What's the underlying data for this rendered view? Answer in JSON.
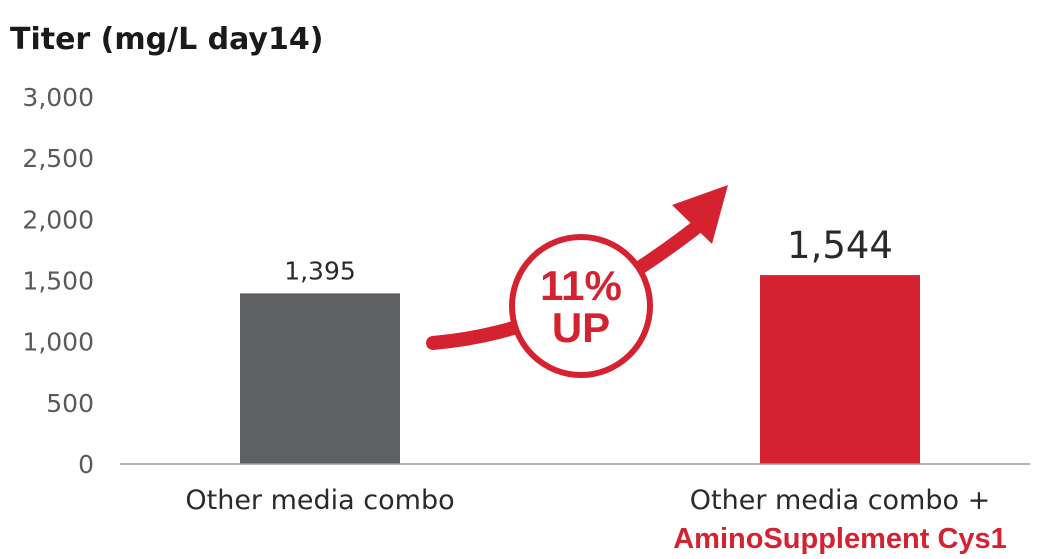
{
  "colors": {
    "gray_bar": "#5f6064",
    "red_bar": "#d42231",
    "accent": "#d42231",
    "axis": "#9a9a9a"
  },
  "chart_data": {
    "type": "bar",
    "title": "Titer (mg/L day14)",
    "yticks": [
      "3,000",
      "2,500",
      "2,000",
      "1,500",
      "1,000",
      "500",
      "0"
    ],
    "ylim": [
      0,
      3000
    ],
    "categories": [
      {
        "label": "Other media combo",
        "label_emph": ""
      },
      {
        "label": "Other media combo +",
        "label_emph": "AminoSupplement Cys1"
      }
    ],
    "values": [
      1395,
      1544
    ],
    "value_labels": [
      "1,395",
      "1,544"
    ],
    "bar_colors": [
      "#5f6064",
      "#d42231"
    ],
    "annotation": {
      "line1": "11%",
      "line2": "UP",
      "icon": "arrow-up-right-icon"
    },
    "grid": false
  }
}
